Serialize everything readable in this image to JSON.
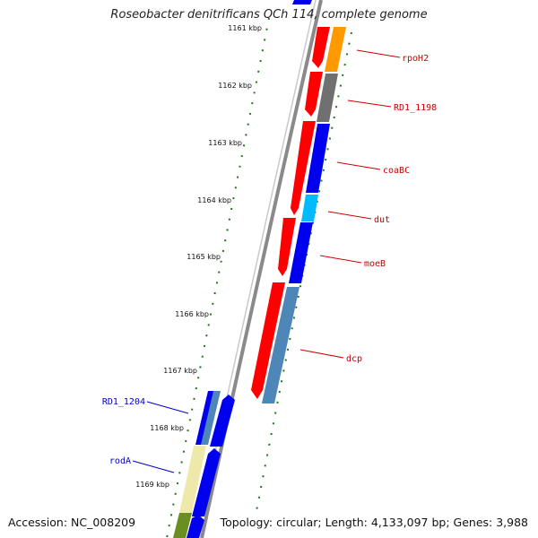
{
  "title": "Roseobacter denitrificans OCh 114, complete genome",
  "footer": {
    "accession": "Accession: NC_008209",
    "summary": "Topology: circular; Length: 4,133,097 bp; Genes: 3,988"
  },
  "colors": {
    "backbone": "#8a8a8a",
    "tick": "#1a7a1a",
    "forward_label": "#cc0000",
    "reverse_label": "#0000cc",
    "red": "#ff0000",
    "blue": "#0000ee",
    "orange": "#ff9900",
    "gray": "#707070",
    "cyan": "#00bbff",
    "steelblue": "#4f86b8",
    "khaki": "#eee8aa",
    "olive": "#6b8e23"
  },
  "scale_labels": [
    "1161 kbp",
    "1162 kbp",
    "1163 kbp",
    "1164 kbp",
    "1165 kbp",
    "1166 kbp",
    "1167 kbp",
    "1168 kbp",
    "1169 kbp"
  ],
  "forward_gene_labels": [
    "rpoH2",
    "RD1_1198",
    "coaBC",
    "dut",
    "moeB",
    "dcp"
  ],
  "reverse_gene_labels": [
    "RD1_1204",
    "rodA"
  ]
}
